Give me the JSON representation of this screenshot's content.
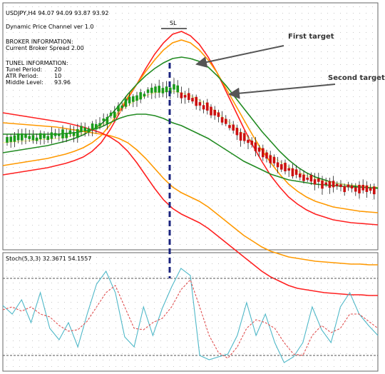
{
  "header": {
    "symbol": "USDJPY,H4",
    "ohlc": "94.07 94.09 93.87 93.92",
    "indicator_title": "Dynamic Price Channel ver 1.0"
  },
  "broker": {
    "heading": "BROKER INFORMATION:",
    "spread_label": "Current Broker Spread",
    "spread_value": "2.00"
  },
  "tunnel": {
    "heading": "TUNEL INFORMATION:",
    "tunel_period_label": "Tunel Period:",
    "tunel_period_value": "20",
    "atr_period_label": "ATR Period:",
    "atr_period_value": "10",
    "middle_level_label": "Middle Level:",
    "middle_level_value": "93.96"
  },
  "annotations": {
    "sl_label": "SL",
    "first_target": "First target",
    "second_target": "Second target"
  },
  "stoch": {
    "label": "Stoch(5,3,3)",
    "values": "32.3671 54.1557"
  },
  "colors": {
    "outer_band": "#ff2020",
    "second_band": "#ff9900",
    "middle_band": "#228b22",
    "center_line": "#f5f08a",
    "bull_candle": "#1a9a1a",
    "bear_candle": "#cc1010",
    "stoch_main": "#4fb8c8",
    "stoch_signal": "#e05050",
    "entry_line": "#1a237e",
    "arrow": "#555555"
  },
  "chart_data": {
    "type": "line",
    "series": [
      {
        "values": [
          245,
          243,
          241,
          239,
          237,
          235,
          232,
          229,
          225,
          220,
          212,
          200,
          182,
          160,
          138,
          118,
          96,
          76,
          60,
          48,
          44,
          50,
          62,
          80,
          102,
          128,
          154,
          180,
          204,
          226,
          246,
          262,
          276,
          286,
          294,
          300,
          304,
          308,
          310,
          312,
          313,
          314,
          315
        ]
      },
      {
        "values": [
          232,
          230,
          228,
          226,
          224,
          222,
          219,
          216,
          212,
          207,
          200,
          190,
          175,
          156,
          136,
          118,
          100,
          84,
          70,
          60,
          56,
          60,
          70,
          84,
          102,
          124,
          146,
          168,
          190,
          210,
          228,
          244,
          258,
          268,
          276,
          282,
          286,
          290,
          292,
          294,
          296,
          297,
          298
        ]
      },
      {
        "values": [
          214,
          212,
          210,
          208,
          206,
          204,
          201,
          198,
          194,
          189,
          182,
          174,
          162,
          148,
          132,
          118,
          106,
          96,
          88,
          82,
          80,
          82,
          86,
          94,
          106,
          120,
          136,
          152,
          168,
          184,
          198,
          212,
          224,
          234,
          242,
          248,
          252,
          256,
          258,
          260,
          262,
          263,
          264
        ]
      },
      {
        "values": [
          200,
          199,
          198,
          197,
          196,
          195,
          194,
          192,
          190,
          187,
          182,
          176,
          168,
          158,
          148,
          140,
          134,
          130,
          128,
          128,
          130,
          134,
          140,
          148,
          158,
          168,
          178,
          188,
          198,
          208,
          218,
          226,
          234,
          240,
          246,
          250,
          254,
          256,
          258,
          259,
          260,
          261,
          262
        ]
      },
      {
        "values": [
          188,
          188,
          188,
          188,
          188,
          188,
          188,
          187,
          186,
          184,
          182,
          178,
          172,
          166,
          162,
          160,
          160,
          162,
          166,
          172,
          176,
          182,
          188,
          194,
          202,
          210,
          218,
          226,
          232,
          238,
          244,
          248,
          252,
          254,
          256,
          258,
          259,
          260,
          261,
          262,
          262,
          263,
          263
        ]
      },
      {
        "values": [
          172,
          173,
          174,
          175,
          176,
          177,
          178,
          180,
          182,
          184,
          186,
          188,
          190,
          194,
          200,
          210,
          222,
          236,
          250,
          262,
          270,
          276,
          282,
          290,
          300,
          310,
          320,
          330,
          338,
          346,
          352,
          356,
          360,
          362,
          364,
          366,
          367,
          368,
          369,
          370,
          370,
          371,
          371
        ]
      },
      {
        "values": [
          158,
          160,
          162,
          164,
          166,
          168,
          170,
          172,
          175,
          178,
          182,
          186,
          192,
          200,
          212,
          228,
          246,
          264,
          280,
          292,
          300,
          306,
          312,
          320,
          330,
          340,
          350,
          360,
          370,
          380,
          388,
          394,
          400,
          404,
          406,
          408,
          410,
          411,
          412,
          413,
          413,
          414,
          414
        ]
      }
    ]
  }
}
